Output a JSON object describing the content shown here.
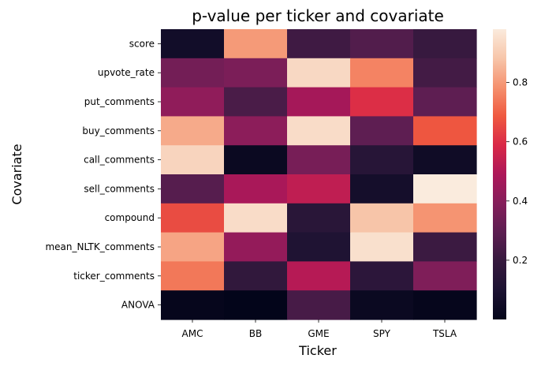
{
  "chart_data": {
    "type": "heatmap",
    "title": "p-value per ticker and covariate",
    "xlabel": "Ticker",
    "ylabel": "Covariate",
    "x_categories": [
      "AMC",
      "BB",
      "GME",
      "SPY",
      "TSLA"
    ],
    "y_categories": [
      "score",
      "upvote_rate",
      "put_comments",
      "buy_comments",
      "call_comments",
      "sell_comments",
      "compound",
      "mean_NLTK_comments",
      "ticker_comments",
      "ANOVA"
    ],
    "values": [
      [
        0.06,
        0.8,
        0.22,
        0.27,
        0.2
      ],
      [
        0.35,
        0.37,
        0.93,
        0.76,
        0.23
      ],
      [
        0.42,
        0.25,
        0.47,
        0.6,
        0.3
      ],
      [
        0.83,
        0.41,
        0.94,
        0.3,
        0.68
      ],
      [
        0.92,
        0.03,
        0.36,
        0.14,
        0.05
      ],
      [
        0.28,
        0.48,
        0.53,
        0.07,
        0.98
      ],
      [
        0.66,
        0.94,
        0.15,
        0.88,
        0.79
      ],
      [
        0.82,
        0.43,
        0.11,
        0.95,
        0.21
      ],
      [
        0.74,
        0.18,
        0.51,
        0.16,
        0.38
      ],
      [
        0.01,
        0.0,
        0.24,
        0.03,
        0.01
      ]
    ],
    "colormap": "rocket",
    "vmin": 0.0,
    "vmax": 0.98,
    "colorbar_ticks": [
      0.2,
      0.4,
      0.6,
      0.8
    ],
    "colorbar_tick_labels": [
      "0.2",
      "0.4",
      "0.6",
      "0.8"
    ],
    "grid": false,
    "colorbar": "right"
  }
}
